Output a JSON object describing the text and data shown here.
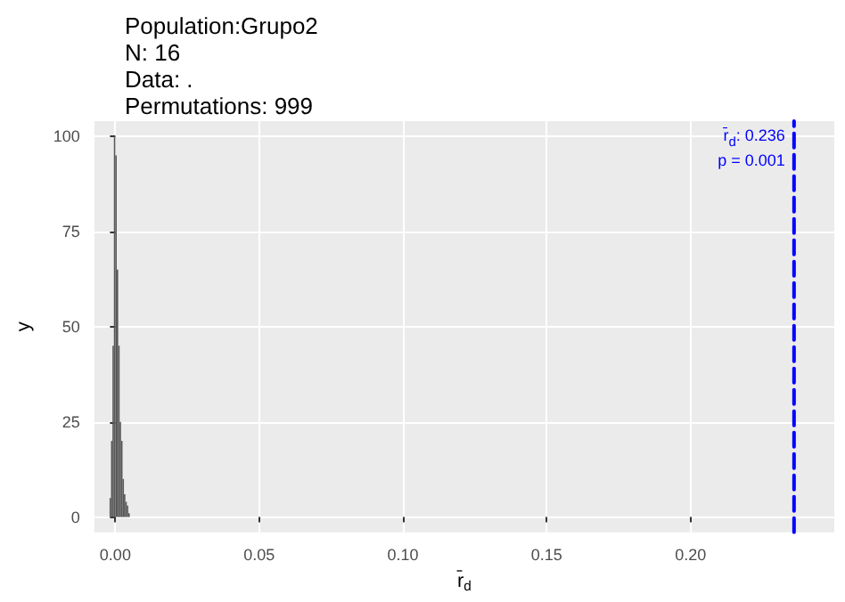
{
  "chart_data": {
    "type": "histogram",
    "title": "Population:Grupo2\nN: 16\nData: .\nPermutations: 999",
    "xlabel": "r̄$_{d}$",
    "ylabel": "y",
    "color": "#595959",
    "bins": [
      -0.002,
      -0.0015,
      -0.001,
      -0.0005,
      0,
      0.0005,
      0.001,
      0.0015,
      0.002,
      0.0025,
      0.003,
      0.0035,
      0.004,
      0.0045,
      0.005
    ],
    "values": [
      5,
      20,
      45,
      100,
      95,
      65,
      45,
      25,
      20,
      10,
      6,
      4,
      3,
      1
    ],
    "xlim": [
      -0.0073,
      0.25
    ],
    "ylim": [
      -4,
      104
    ],
    "xticks": [
      {
        "value": 0,
        "label": "0.00"
      },
      {
        "value": 0.05,
        "label": "0.05"
      },
      {
        "value": 0.1,
        "label": "0.10"
      },
      {
        "value": 0.15,
        "label": "0.15"
      },
      {
        "value": 0.2,
        "label": "0.20"
      }
    ],
    "yticks": [
      0,
      25,
      50,
      75,
      100
    ],
    "grid": true,
    "ref_lines": [
      {
        "axis": "x",
        "value": 0.236,
        "label": "r̄$_{d}$: 0.236\np = 0.001",
        "color": "#0000ff",
        "line_style": "dashed"
      }
    ]
  }
}
